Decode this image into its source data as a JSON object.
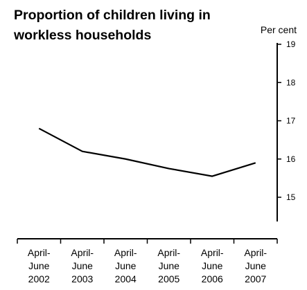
{
  "chart_data": {
    "type": "line",
    "title_lines": [
      "Proportion of children living in",
      "workless households"
    ],
    "ylabel": "Per cent",
    "xlabel": "",
    "ylim": [
      14.5,
      19
    ],
    "y_ticks": [
      15,
      16,
      17,
      18,
      19
    ],
    "y_axis_position": "right",
    "grid": false,
    "categories": [
      [
        "April-",
        "June",
        "2002"
      ],
      [
        "April-",
        "June",
        "2003"
      ],
      [
        "April-",
        "June",
        "2004"
      ],
      [
        "April-",
        "June",
        "2005"
      ],
      [
        "April-",
        "June",
        "2006"
      ],
      [
        "April-",
        "June",
        "2007"
      ]
    ],
    "series": [
      {
        "values": [
          16.8,
          16.2,
          16.0,
          15.75,
          15.55,
          15.9
        ],
        "color": "#000000"
      }
    ]
  }
}
